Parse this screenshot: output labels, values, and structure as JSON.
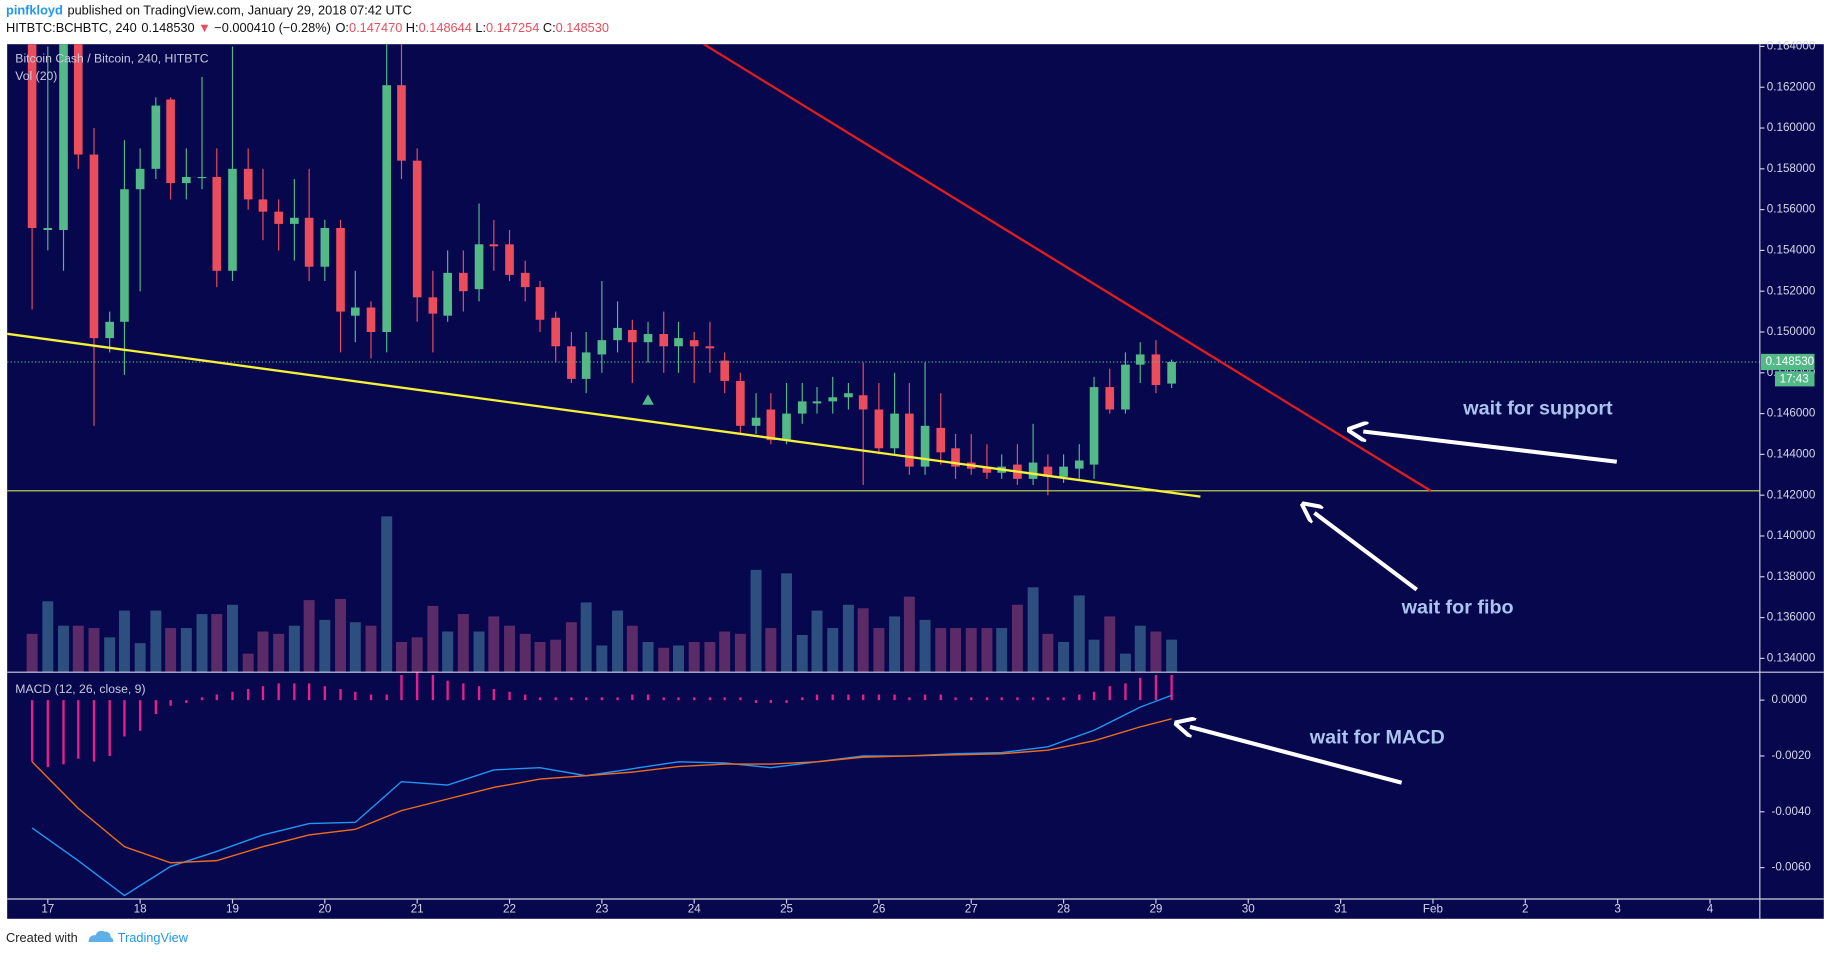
{
  "header": {
    "author": "pinfkloyd",
    "published": "published on TradingView.com, January 29, 2018 07:42 UTC",
    "symbol": "HITBTC:BCHBTC, 240",
    "price": "0.148530",
    "arrow": "▼",
    "change": "−0.000410 (−0.28%)",
    "ohlc": [
      {
        "label": "O:",
        "value": "0.147470"
      },
      {
        "label": "H:",
        "value": "0.148644"
      },
      {
        "label": "L:",
        "value": "0.147254"
      },
      {
        "label": "C:",
        "value": "0.148530"
      }
    ]
  },
  "footer": {
    "created": "Created with",
    "brand": "TradingView"
  },
  "chart_data": {
    "type": "candlestick",
    "title": "Bitcoin Cash / Bitcoin, 240, HITBTC",
    "up_color": "#53b987",
    "down_color": "#eb4d5c",
    "x": [
      16.83,
      17,
      17.17,
      17.33,
      17.5,
      17.67,
      17.83,
      18,
      18.17,
      18.33,
      18.5,
      18.67,
      18.83,
      19,
      19.17,
      19.33,
      19.5,
      19.67,
      19.83,
      20,
      20.17,
      20.33,
      20.5,
      20.67,
      20.83,
      21,
      21.17,
      21.33,
      21.5,
      21.67,
      21.83,
      22,
      22.17,
      22.33,
      22.5,
      22.67,
      22.83,
      23,
      23.17,
      23.33,
      23.5,
      23.67,
      23.83,
      24,
      24.17,
      24.33,
      24.5,
      24.67,
      24.83,
      25,
      25.17,
      25.33,
      25.5,
      25.67,
      25.83,
      26,
      26.17,
      26.33,
      26.5,
      26.67,
      26.83,
      27,
      27.17,
      27.33,
      27.5,
      27.67,
      27.83,
      28,
      28.17,
      28.33,
      28.5,
      28.67,
      28.83,
      29,
      29.17
    ],
    "open": [
      0.165,
      0.155,
      0.155,
      0.165,
      0.1587,
      0.1497,
      0.1505,
      0.157,
      0.158,
      0.1614,
      0.1573,
      0.1576,
      0.1576,
      0.153,
      0.158,
      0.1565,
      0.1559,
      0.1553,
      0.1556,
      0.1532,
      0.1551,
      0.1508,
      0.1512,
      0.15,
      0.1621,
      0.1584,
      0.1517,
      0.1508,
      0.1529,
      0.1521,
      0.1543,
      0.1543,
      0.1529,
      0.1522,
      0.1507,
      0.1493,
      0.1477,
      0.1489,
      0.1496,
      0.1501,
      0.1495,
      0.1499,
      0.1493,
      0.1496,
      0.1493,
      0.1486,
      0.1476,
      0.1454,
      0.1462,
      0.1447,
      0.146,
      0.1465,
      0.1466,
      0.1468,
      0.1469,
      0.1462,
      0.1443,
      0.146,
      0.1434,
      0.1453,
      0.1443,
      0.1436,
      0.1434,
      0.1431,
      0.1435,
      0.1428,
      0.1434,
      0.1429,
      0.1433,
      0.1435,
      0.1473,
      0.1462,
      0.1484,
      0.1489,
      0.14747
    ],
    "high": [
      0.166,
      0.164,
      0.166,
      0.166,
      0.16,
      0.151,
      0.1594,
      0.159,
      0.1615,
      0.1615,
      0.159,
      0.1625,
      0.159,
      0.164,
      0.159,
      0.158,
      0.1565,
      0.1575,
      0.158,
      0.1555,
      0.1555,
      0.153,
      0.1515,
      0.165,
      0.165,
      0.159,
      0.153,
      0.154,
      0.154,
      0.1563,
      0.1555,
      0.155,
      0.1535,
      0.1525,
      0.151,
      0.15,
      0.15,
      0.1525,
      0.1515,
      0.1506,
      0.1505,
      0.151,
      0.1505,
      0.15,
      0.1505,
      0.149,
      0.148,
      0.147,
      0.147,
      0.1475,
      0.1475,
      0.1473,
      0.1478,
      0.1475,
      0.1485,
      0.1475,
      0.148,
      0.1475,
      0.1485,
      0.147,
      0.145,
      0.145,
      0.1445,
      0.144,
      0.1445,
      0.1455,
      0.144,
      0.144,
      0.1445,
      0.1478,
      0.1482,
      0.149,
      0.1495,
      0.1496,
      0.148644
    ],
    "low": [
      0.1511,
      0.154,
      0.153,
      0.158,
      0.1454,
      0.149,
      0.1479,
      0.152,
      0.1575,
      0.1565,
      0.1565,
      0.157,
      0.1522,
      0.1525,
      0.156,
      0.1545,
      0.154,
      0.1535,
      0.1525,
      0.1525,
      0.149,
      0.1495,
      0.1487,
      0.149,
      0.1575,
      0.1505,
      0.149,
      0.1505,
      0.151,
      0.1515,
      0.153,
      0.1525,
      0.1515,
      0.15,
      0.1485,
      0.1475,
      0.147,
      0.148,
      0.149,
      0.1475,
      0.1485,
      0.148,
      0.148,
      0.1475,
      0.148,
      0.147,
      0.145,
      0.145,
      0.1445,
      0.1445,
      0.1455,
      0.146,
      0.146,
      0.1462,
      0.1425,
      0.144,
      0.144,
      0.143,
      0.143,
      0.1435,
      0.1428,
      0.143,
      0.1428,
      0.1428,
      0.1425,
      0.1425,
      0.142,
      0.1426,
      0.1428,
      0.1428,
      0.146,
      0.146,
      0.1475,
      0.147,
      0.147254
    ],
    "close": [
      0.1551,
      0.1551,
      0.165,
      0.1587,
      0.1497,
      0.1505,
      0.157,
      0.158,
      0.1611,
      0.1573,
      0.1576,
      0.1576,
      0.153,
      0.158,
      0.1565,
      0.1559,
      0.1553,
      0.1556,
      0.1532,
      0.1551,
      0.151,
      0.1512,
      0.15,
      0.1621,
      0.1584,
      0.1517,
      0.1509,
      0.1529,
      0.152,
      0.1543,
      0.1542,
      0.1528,
      0.1522,
      0.1506,
      0.1493,
      0.1477,
      0.149,
      0.1496,
      0.1502,
      0.1495,
      0.1499,
      0.1493,
      0.1497,
      0.1493,
      0.1492,
      0.1476,
      0.1454,
      0.1458,
      0.1447,
      0.146,
      0.1466,
      0.1466,
      0.1468,
      0.147,
      0.1462,
      0.1443,
      0.146,
      0.1434,
      0.1454,
      0.1441,
      0.1434,
      0.1433,
      0.1431,
      0.1434,
      0.1428,
      0.1436,
      0.1429,
      0.1434,
      0.1437,
      0.1473,
      0.1462,
      0.1484,
      0.1489,
      0.1474,
      0.14853
    ],
    "xlim": [
      16.56,
      35.54
    ],
    "xticks": [
      17,
      18,
      19,
      20,
      21,
      22,
      23,
      24,
      25,
      26,
      27,
      28,
      29,
      30,
      31,
      {
        "value": 32,
        "label": "Feb"
      },
      {
        "value": 33,
        "label": "2"
      },
      {
        "value": 34,
        "label": "3"
      },
      {
        "value": 35,
        "label": "4"
      }
    ],
    "ylim": [
      0.13332,
      0.16411
    ],
    "yticks": [
      {
        "value": 0.134,
        "label": "0.134000"
      },
      {
        "value": 0.136,
        "label": "0.136000"
      },
      {
        "value": 0.138,
        "label": "0.138000"
      },
      {
        "value": 0.14,
        "label": "0.140000"
      },
      {
        "value": 0.142,
        "label": "0.142000"
      },
      {
        "value": 0.144,
        "label": "0.144000"
      },
      {
        "value": 0.146,
        "label": "0.146000"
      },
      {
        "value": 0.148,
        "label": "0.148000"
      },
      {
        "value": 0.15,
        "label": "0.150000"
      },
      {
        "value": 0.152,
        "label": "0.152000"
      },
      {
        "value": 0.154,
        "label": "0.154000"
      },
      {
        "value": 0.156,
        "label": "0.156000"
      },
      {
        "value": 0.158,
        "label": "0.158000"
      },
      {
        "value": 0.16,
        "label": "0.160000"
      },
      {
        "value": 0.162,
        "label": "0.162000"
      },
      {
        "value": 0.164,
        "label": "0.164000"
      }
    ],
    "last_price": {
      "value": 0.14853,
      "label": "0.148530"
    },
    "countdown": "17:43",
    "volume": {
      "name": "Vol (20)",
      "up_color": "#2d4f80",
      "down_color": "#5a2b66",
      "ylim": [
        0,
        540
      ],
      "values": [
        33,
        61,
        40,
        40,
        38,
        30,
        53,
        25,
        53,
        38,
        38,
        50,
        50,
        58,
        16,
        35,
        33,
        40,
        62,
        45,
        63,
        43,
        40,
        134,
        26,
        30,
        57,
        35,
        50,
        35,
        48,
        40,
        33,
        26,
        28,
        43,
        60,
        23,
        53,
        40,
        26,
        21,
        23,
        26,
        26,
        35,
        33,
        88,
        38,
        85,
        32,
        53,
        38,
        58,
        55,
        38,
        48,
        65,
        45,
        38,
        38,
        38,
        38,
        38,
        58,
        73,
        33,
        26,
        66,
        28,
        48,
        16,
        40,
        35,
        28
      ]
    },
    "macd": {
      "name": "MACD (12, 26, close, 9)",
      "ylim": [
        -0.007125,
        0.001
      ],
      "yticks": [
        {
          "value": 0,
          "label": "0.0000"
        },
        {
          "value": -0.002,
          "label": "-0.0020"
        },
        {
          "value": -0.004,
          "label": "-0.0040"
        },
        {
          "value": -0.006,
          "label": "-0.0060"
        }
      ],
      "histogram": {
        "color": "#e91e8c",
        "values": [
          -0.0022,
          -0.0024,
          -0.0023,
          -0.0021,
          -0.0022,
          -0.002,
          -0.0013,
          -0.0011,
          -0.0005,
          -0.0002,
          -0.0001,
          0.0001,
          0.0002,
          0.0003,
          0.0004,
          0.0005,
          0.0006,
          0.0006,
          0.0006,
          0.0005,
          0.0004,
          0.0003,
          0.0002,
          0.0002,
          0.0009,
          0.001,
          0.0009,
          0.0007,
          0.0006,
          0.0005,
          0.0004,
          0.0003,
          0.0002,
          0.0001,
          0.0001,
          0.0001,
          0.0001,
          0.0001,
          0.0001,
          0.0002,
          0.0002,
          0.0001,
          0.0001,
          0.0001,
          0.0001,
          0.0001,
          0.0001,
          -0.0001,
          -0.0001,
          -0.0001,
          0.0001,
          0.0002,
          0.0002,
          0.0002,
          0.0002,
          0.0002,
          0.0002,
          0.0001,
          0.0002,
          0.0002,
          0.0001,
          0.0001,
          0.0001,
          0.0001,
          0.0001,
          0.0001,
          0.0001,
          0.0001,
          0.0002,
          0.0003,
          0.0005,
          0.0006,
          0.0008,
          0.0009,
          0.0009
        ]
      },
      "lines": {
        "x": [
          16.83,
          17.33,
          17.83,
          18.33,
          18.83,
          19.33,
          19.83,
          20.33,
          20.83,
          21.33,
          21.83,
          22.33,
          22.83,
          23.33,
          23.83,
          24.33,
          24.83,
          25.33,
          25.83,
          26.33,
          26.83,
          27.33,
          27.83,
          28.33,
          28.83,
          29.17
        ],
        "series": [
          {
            "color": "#2196f3",
            "values": [
              -0.00458,
              -0.00575,
              -0.007,
              -0.00596,
              -0.00542,
              -0.00483,
              -0.00442,
              -0.00438,
              -0.00292,
              -0.00304,
              -0.0025,
              -0.00242,
              -0.00271,
              -0.00246,
              -0.00221,
              -0.00225,
              -0.00242,
              -0.00221,
              -0.002,
              -0.002,
              -0.00192,
              -0.00188,
              -0.00167,
              -0.00108,
              -0.00025,
              0.00017
            ]
          },
          {
            "color": "#ef6c1a",
            "values": [
              -0.00221,
              -0.00388,
              -0.00525,
              -0.00583,
              -0.00575,
              -0.00525,
              -0.00483,
              -0.00463,
              -0.00396,
              -0.00354,
              -0.00313,
              -0.00283,
              -0.00271,
              -0.00258,
              -0.00238,
              -0.00229,
              -0.00229,
              -0.00221,
              -0.00204,
              -0.002,
              -0.00196,
              -0.00192,
              -0.00179,
              -0.00146,
              -0.00096,
              -0.00067
            ]
          }
        ]
      }
    },
    "annotations": [
      "wait for support",
      "wait for fibo",
      "wait for MACD"
    ]
  }
}
